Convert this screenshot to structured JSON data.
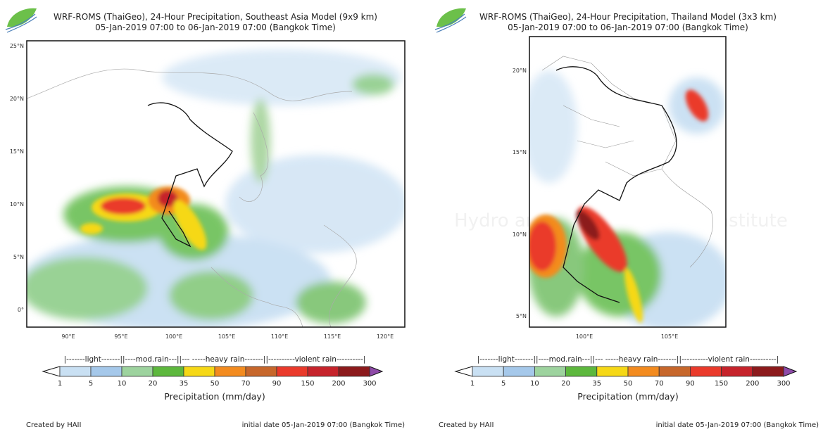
{
  "panels": [
    {
      "title": "WRF-ROMS (ThaiGeo), 24-Hour Precipitation, Southeast Asia Model (9x9 km)",
      "subtitle": "05-Jan-2019 07:00 to 06-Jan-2019 07:00 (Bangkok Time)",
      "lat_ticks": [
        "25°N",
        "20°N",
        "15°N",
        "10°N",
        "5°N",
        "0°"
      ],
      "lon_ticks": [
        "90°E",
        "95°E",
        "100°E",
        "105°E",
        "110°E",
        "115°E",
        "120°E"
      ],
      "footer_left": "Created by HAII",
      "footer_right": "initial date 05-Jan-2019 07:00 (Bangkok Time)"
    },
    {
      "title": "WRF-ROMS (ThaiGeo), 24-Hour Precipitation, Thailand Model (3x3 km)",
      "subtitle": "05-Jan-2019 07:00 to 06-Jan-2019 07:00 (Bangkok Time)",
      "lat_ticks": [
        "20°N",
        "15°N",
        "10°N",
        "5°N"
      ],
      "lon_ticks": [
        "100°E",
        "105°E"
      ],
      "watermark": "Hydro and Agro Informatics Institute",
      "footer_left": "Created by HAII",
      "footer_right": "initial date 05-Jan-2019 07:00 (Bangkok Time)"
    }
  ],
  "colorbar": {
    "categories": "|-------light-------||----mod.rain---||--- -----heavy rain-------||----------violent rain----------|",
    "labels": [
      "1",
      "5",
      "10",
      "20",
      "35",
      "50",
      "70",
      "90",
      "150",
      "200",
      "300"
    ],
    "colors": [
      "#c9e0f3",
      "#a5c8ea",
      "#9dd39e",
      "#5db83d",
      "#f6d816",
      "#f38b1f",
      "#c7672b",
      "#ea3a2b",
      "#c6232b",
      "#8c1a1c"
    ],
    "under_color": "#ffffff",
    "over_color": "#8e4aa8",
    "title": "Precipitation (mm/day)"
  }
}
